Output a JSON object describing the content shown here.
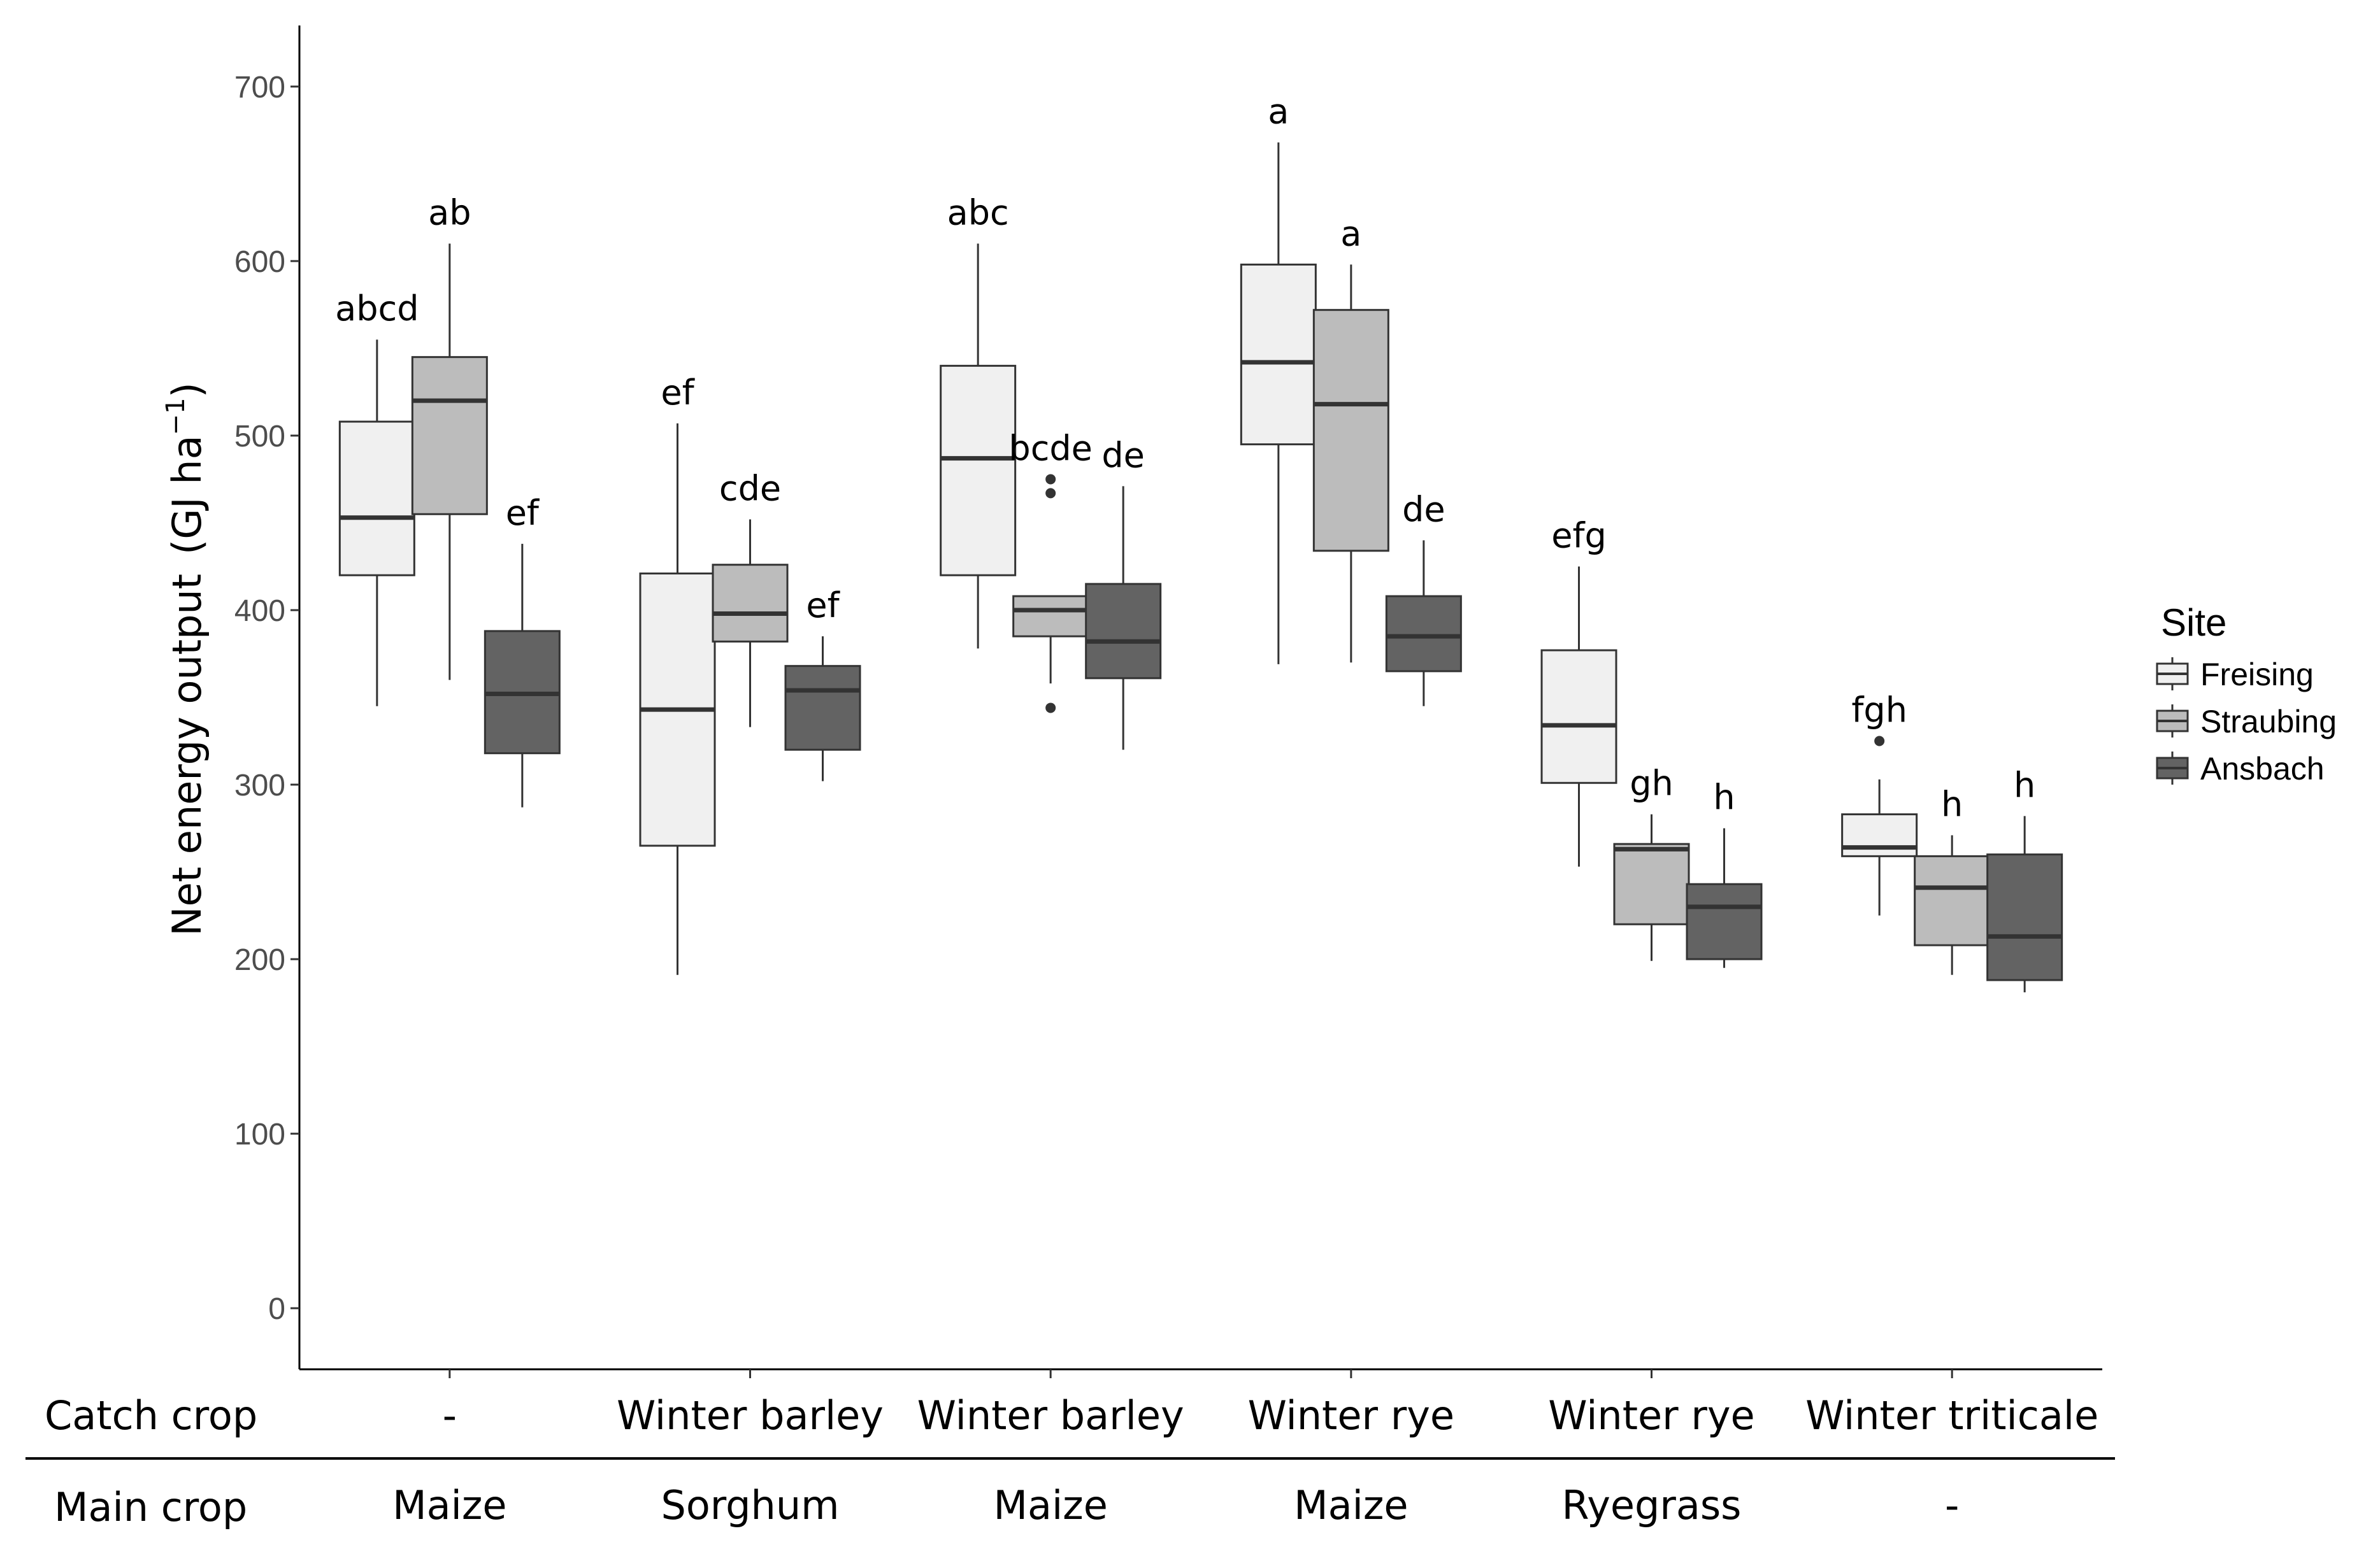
{
  "chart_data": {
    "type": "boxplot",
    "ylabel": "Net energy output",
    "ylabel_unit": "(GJ ha",
    "ylabel_unit_sup": "−1",
    "ylabel_unit_close": ")",
    "ylim": [
      -35,
      735
    ],
    "yticks": [
      0,
      100,
      200,
      300,
      400,
      500,
      600,
      700
    ],
    "grid": false,
    "legend": {
      "title": "Site",
      "position": "right",
      "entries": [
        {
          "name": "Freising",
          "color": "#f0f0f0"
        },
        {
          "name": "Straubing",
          "color": "#bcbcbc"
        },
        {
          "name": "Ansbach",
          "color": "#636363"
        }
      ]
    },
    "row_labels": {
      "catch": "Catch crop",
      "main": "Main crop"
    },
    "groups": [
      {
        "catch_crop": "-",
        "main_crop": "Maize",
        "boxes": [
          {
            "site": "Freising",
            "min": 345,
            "q1": 420,
            "median": 453,
            "q3": 508,
            "max": 555,
            "outliers": [],
            "label": "abcd"
          },
          {
            "site": "Straubing",
            "min": 360,
            "q1": 455,
            "median": 520,
            "q3": 545,
            "max": 610,
            "outliers": [],
            "label": "ab"
          },
          {
            "site": "Ansbach",
            "min": 287,
            "q1": 318,
            "median": 352,
            "q3": 388,
            "max": 438,
            "outliers": [],
            "label": "ef"
          }
        ]
      },
      {
        "catch_crop": "Winter barley",
        "main_crop": "Sorghum",
        "boxes": [
          {
            "site": "Freising",
            "min": 191,
            "q1": 265,
            "median": 343,
            "q3": 421,
            "max": 507,
            "outliers": [],
            "label": "ef"
          },
          {
            "site": "Straubing",
            "min": 333,
            "q1": 382,
            "median": 398,
            "q3": 426,
            "max": 452,
            "outliers": [],
            "label": "cde"
          },
          {
            "site": "Ansbach",
            "min": 302,
            "q1": 320,
            "median": 354,
            "q3": 368,
            "max": 385,
            "outliers": [],
            "label": "ef"
          }
        ]
      },
      {
        "catch_crop": "Winter barley",
        "main_crop": "Maize",
        "boxes": [
          {
            "site": "Freising",
            "min": 378,
            "q1": 420,
            "median": 487,
            "q3": 540,
            "max": 610,
            "outliers": [],
            "label": "abc"
          },
          {
            "site": "Straubing",
            "min": 358,
            "q1": 385,
            "median": 400,
            "q3": 408,
            "max": 408,
            "outliers": [
              475,
              467,
              344
            ],
            "label": "bcde"
          },
          {
            "site": "Ansbach",
            "min": 320,
            "q1": 361,
            "median": 382,
            "q3": 415,
            "max": 471,
            "outliers": [],
            "label": "de"
          }
        ]
      },
      {
        "catch_crop": "Winter rye",
        "main_crop": "Maize",
        "boxes": [
          {
            "site": "Freising",
            "min": 369,
            "q1": 495,
            "median": 542,
            "q3": 598,
            "max": 668,
            "outliers": [],
            "label": "a"
          },
          {
            "site": "Straubing",
            "min": 370,
            "q1": 434,
            "median": 518,
            "q3": 572,
            "max": 598,
            "outliers": [],
            "label": "a"
          },
          {
            "site": "Ansbach",
            "min": 345,
            "q1": 365,
            "median": 385,
            "q3": 408,
            "max": 440,
            "outliers": [],
            "label": "de"
          }
        ]
      },
      {
        "catch_crop": "Winter rye",
        "main_crop": "Ryegrass",
        "boxes": [
          {
            "site": "Freising",
            "min": 253,
            "q1": 301,
            "median": 334,
            "q3": 377,
            "max": 425,
            "outliers": [],
            "label": "efg"
          },
          {
            "site": "Straubing",
            "min": 199,
            "q1": 220,
            "median": 263,
            "q3": 266,
            "max": 283,
            "outliers": [],
            "label": "gh"
          },
          {
            "site": "Ansbach",
            "min": 195,
            "q1": 200,
            "median": 230,
            "q3": 243,
            "max": 275,
            "outliers": [],
            "label": "h"
          }
        ]
      },
      {
        "catch_crop": "Winter triticale",
        "main_crop": "-",
        "boxes": [
          {
            "site": "Freising",
            "min": 225,
            "q1": 259,
            "median": 264,
            "q3": 283,
            "max": 303,
            "outliers": [
              325
            ],
            "label": "fgh"
          },
          {
            "site": "Straubing",
            "min": 191,
            "q1": 208,
            "median": 241,
            "q3": 259,
            "max": 271,
            "outliers": [],
            "label": "h"
          },
          {
            "site": "Ansbach",
            "min": 181,
            "q1": 188,
            "median": 213,
            "q3": 260,
            "max": 282,
            "outliers": [],
            "label": "h"
          }
        ]
      }
    ]
  }
}
